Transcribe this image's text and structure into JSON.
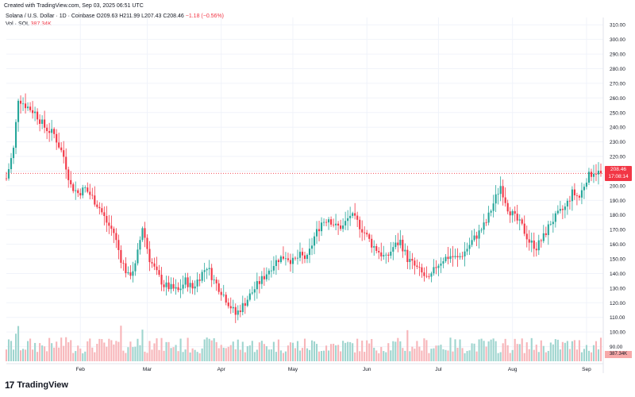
{
  "header": {
    "credit": "Created with TradingView.com, Sep 03, 2025 06:51 UTC",
    "symbol_line": "Solana / U.S. Dollar · 1D · Coinbase",
    "ohlc": "O209.63 H211.99 L207.43 C208.46",
    "change": "−1.18 (−0.56%)",
    "volume_label": "Vol · SOL",
    "volume_value": "387.34K"
  },
  "price_tag": {
    "price": "208.46",
    "countdown": "17:08:14"
  },
  "volume_tag": "387.34K",
  "brand": {
    "logo": "17",
    "name": "TradingView"
  },
  "colors": {
    "up": "#26a69a",
    "down": "#f23645",
    "up_vol": "#9fd5cf",
    "down_vol": "#f7b5b9",
    "grid": "#f0f3fa"
  },
  "chart_data": {
    "type": "candlestick",
    "symbol": "SOL/USD",
    "exchange": "Coinbase",
    "interval": "1D",
    "y_ticks": [
      90,
      100,
      110,
      120,
      130,
      140,
      150,
      160,
      170,
      180,
      190,
      200,
      210,
      220,
      230,
      240,
      250,
      260,
      270,
      280,
      290,
      300,
      310
    ],
    "y_tick_labels": [
      "90.00",
      "100.00",
      "110.00",
      "120.00",
      "130.00",
      "140.00",
      "150.00",
      "160.00",
      "170.00",
      "180.00",
      "190.00",
      "200.00",
      "210.00",
      "220.00",
      "230.00",
      "240.00",
      "250.00",
      "260.00",
      "270.00",
      "280.00",
      "290.00",
      "300.00",
      "310.00"
    ],
    "ylim": [
      80,
      315
    ],
    "x_ticks": [
      "Feb",
      "Mar",
      "Apr",
      "May",
      "Jun",
      "Jul",
      "Aug",
      "Sep"
    ],
    "x_tick_days": [
      31,
      59,
      90,
      120,
      151,
      181,
      212,
      243
    ],
    "last_close": 208.46,
    "close_path": [
      [
        0,
        205
      ],
      [
        3,
        225
      ],
      [
        5,
        260
      ],
      [
        8,
        255
      ],
      [
        12,
        250
      ],
      [
        16,
        240
      ],
      [
        20,
        235
      ],
      [
        24,
        220
      ],
      [
        27,
        200
      ],
      [
        30,
        195
      ],
      [
        33,
        198
      ],
      [
        36,
        192
      ],
      [
        39,
        185
      ],
      [
        42,
        175
      ],
      [
        45,
        168
      ],
      [
        48,
        150
      ],
      [
        51,
        138
      ],
      [
        54,
        145
      ],
      [
        57,
        172
      ],
      [
        60,
        150
      ],
      [
        63,
        140
      ],
      [
        66,
        132
      ],
      [
        69,
        130
      ],
      [
        72,
        128
      ],
      [
        75,
        135
      ],
      [
        78,
        130
      ],
      [
        81,
        138
      ],
      [
        84,
        145
      ],
      [
        87,
        135
      ],
      [
        90,
        128
      ],
      [
        93,
        120
      ],
      [
        96,
        112
      ],
      [
        99,
        118
      ],
      [
        102,
        125
      ],
      [
        105,
        132
      ],
      [
        108,
        138
      ],
      [
        111,
        145
      ],
      [
        114,
        150
      ],
      [
        117,
        152
      ],
      [
        120,
        148
      ],
      [
        123,
        152
      ],
      [
        126,
        150
      ],
      [
        129,
        165
      ],
      [
        132,
        175
      ],
      [
        135,
        178
      ],
      [
        138,
        172
      ],
      [
        141,
        172
      ],
      [
        144,
        180
      ],
      [
        147,
        175
      ],
      [
        150,
        168
      ],
      [
        153,
        160
      ],
      [
        156,
        155
      ],
      [
        159,
        150
      ],
      [
        162,
        158
      ],
      [
        165,
        162
      ],
      [
        168,
        150
      ],
      [
        171,
        145
      ],
      [
        174,
        140
      ],
      [
        177,
        135
      ],
      [
        180,
        145
      ],
      [
        183,
        150
      ],
      [
        186,
        152
      ],
      [
        189,
        150
      ],
      [
        192,
        155
      ],
      [
        195,
        162
      ],
      [
        198,
        168
      ],
      [
        201,
        175
      ],
      [
        204,
        188
      ],
      [
        207,
        200
      ],
      [
        210,
        185
      ],
      [
        213,
        178
      ],
      [
        216,
        172
      ],
      [
        219,
        162
      ],
      [
        222,
        158
      ],
      [
        225,
        165
      ],
      [
        228,
        175
      ],
      [
        231,
        180
      ],
      [
        234,
        185
      ],
      [
        237,
        195
      ],
      [
        240,
        192
      ],
      [
        243,
        205
      ],
      [
        246,
        210
      ],
      [
        249,
        208.46
      ]
    ]
  }
}
